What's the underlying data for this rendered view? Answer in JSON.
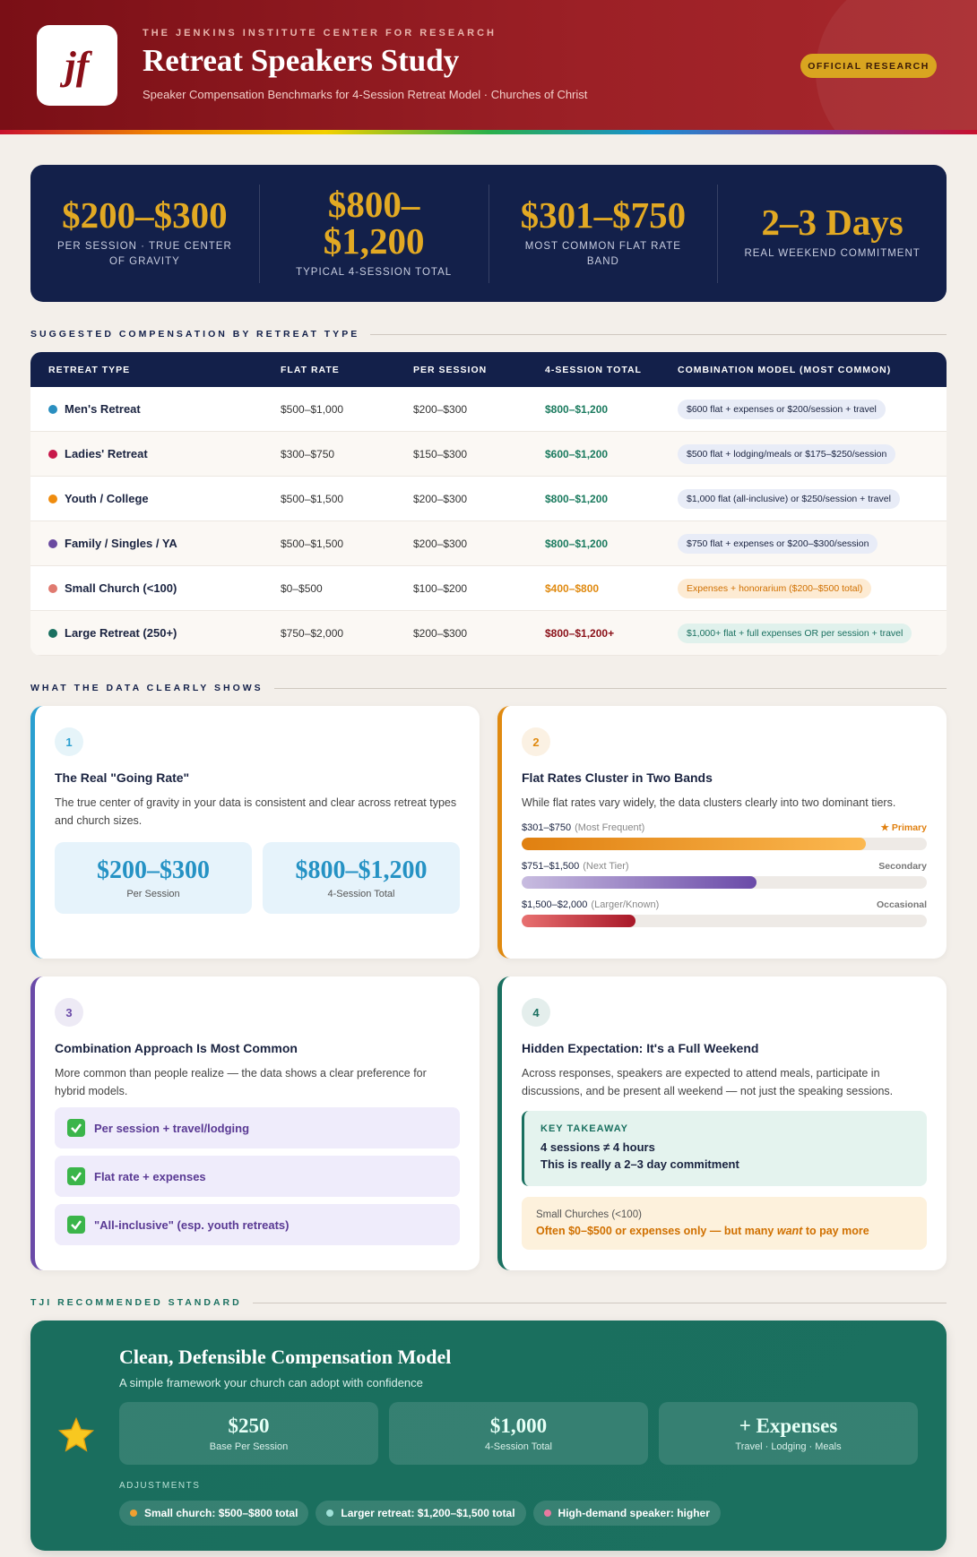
{
  "header": {
    "logo": "jf",
    "kicker": "THE JENKINS INSTITUTE CENTER FOR RESEARCH",
    "title": "Retreat Speakers Study",
    "subtitle": "Speaker Compensation Benchmarks for 4-Session Retreat Model · Churches of Christ",
    "badge": "OFFICIAL RESEARCH"
  },
  "stats": [
    {
      "value": "$200–$300",
      "label": "PER SESSION · TRUE CENTER OF GRAVITY"
    },
    {
      "value": "$800–$1,200",
      "label": "TYPICAL 4-SESSION TOTAL"
    },
    {
      "value": "$301–$750",
      "label": "MOST COMMON FLAT RATE BAND"
    },
    {
      "value": "2–3 Days",
      "label": "REAL WEEKEND COMMITMENT"
    }
  ],
  "table": {
    "heading": "SUGGESTED COMPENSATION BY RETREAT TYPE",
    "columns": [
      "RETREAT TYPE",
      "FLAT RATE",
      "PER SESSION",
      "4-SESSION TOTAL",
      "COMBINATION MODEL (MOST COMMON)"
    ],
    "rows": [
      [
        "Men's Retreat",
        "$500–$1,000",
        "$200–$300",
        "$800–$1,200",
        "$600 flat + expenses or $200/session + travel"
      ],
      [
        "Ladies' Retreat",
        "$300–$750",
        "$150–$300",
        "$600–$1,200",
        "$500 flat + lodging/meals or $175–$250/session"
      ],
      [
        "Youth / College",
        "$500–$1,500",
        "$200–$300",
        "$800–$1,200",
        "$1,000 flat (all-inclusive) or $250/session + travel"
      ],
      [
        "Family / Singles / YA",
        "$500–$1,500",
        "$200–$300",
        "$800–$1,200",
        "$750 flat + expenses or $200–$300/session"
      ],
      [
        "Small Church (<100)",
        "$0–$500",
        "$100–$200",
        "$400–$800",
        "Expenses + honorarium ($200–$500 total)"
      ],
      [
        "Large Retreat (250+)",
        "$750–$2,000",
        "$200–$300",
        "$800–$1,200+",
        "$1,000+ flat + full expenses OR per session + travel"
      ]
    ],
    "dot_colors": [
      "#2a8fc0",
      "#c8184a",
      "#ef8c0e",
      "#6a4aa0",
      "#e07a70",
      "#1a7060"
    ],
    "tones": [
      "normal",
      "normal",
      "normal",
      "normal",
      "warn",
      "high"
    ]
  },
  "findings": {
    "heading": "WHAT THE DATA CLEARLY SHOWS",
    "cards": [
      {
        "number": "1",
        "color": "#2a9fd0",
        "title": "The Real \"Going Rate\"",
        "text": "The true center of gravity in your data is consistent and clear across retreat types and church sizes.",
        "boxes": [
          {
            "value": "$200–$300",
            "label": "Per Session"
          },
          {
            "value": "$800–$1,200",
            "label": "4-Session Total"
          }
        ]
      },
      {
        "number": "2",
        "color": "#e08a10",
        "title": "Flat Rates Cluster in Two Bands",
        "text": "While flat rates vary widely, the data clusters clearly into two dominant tiers.",
        "bars": [
          {
            "range": "$301–$750",
            "note": "(Most Frequent)",
            "tier": "★ Primary",
            "value": 85,
            "colors": [
              "#e08010",
              "#fbb850"
            ]
          },
          {
            "range": "$751–$1,500",
            "note": "(Next Tier)",
            "tier": "Secondary",
            "value": 58,
            "colors": [
              "#c8bce0",
              "#6a4aa8"
            ]
          },
          {
            "range": "$1,500–$2,000",
            "note": "(Larger/Known)",
            "tier": "Occasional",
            "value": 28,
            "colors": [
              "#e87070",
              "#a81828"
            ]
          }
        ]
      },
      {
        "number": "3",
        "color": "#6a4aa8",
        "title": "Combination Approach Is Most Common",
        "text": "More common than people realize — the data shows a clear preference for hybrid models.",
        "items": [
          "Per session + travel/lodging",
          "Flat rate + expenses",
          "\"All-inclusive\" (esp. youth retreats)"
        ]
      },
      {
        "number": "4",
        "color": "#1a7060",
        "title": "Hidden Expectation: It's a Full Weekend",
        "text": "Across responses, speakers are expected to attend meals, participate in discussions, and be present all weekend — not just the speaking sessions.",
        "takeaway": {
          "label": "KEY TAKEAWAY",
          "lines": [
            "4 sessions ≠ 4 hours",
            "This is really a 2–3 day commitment"
          ]
        },
        "note": {
          "label": "Small Churches (<100)",
          "before": "Often $0–$500 or expenses only — but many ",
          "emphasis": "want",
          "after": " to pay more"
        }
      }
    ]
  },
  "recommended": {
    "heading": "TJI RECOMMENDED STANDARD",
    "title": "Clean, Defensible Compensation Model",
    "subtitle": "A simple framework your church can adopt with confidence",
    "boxes": [
      {
        "value": "$250",
        "label": "Base Per Session"
      },
      {
        "value": "$1,000",
        "label": "4-Session Total"
      },
      {
        "value": "+ Expenses",
        "label": "Travel · Lodging · Meals"
      }
    ],
    "adjust_label": "ADJUSTMENTS",
    "adjustments": [
      {
        "text": "Small church: $500–$800 total",
        "color": "#f0a030"
      },
      {
        "text": "Larger retreat: $1,200–$1,500 total",
        "color": "#a0e0d8"
      },
      {
        "text": "High-demand speaker: higher",
        "color": "#e87aa0"
      }
    ]
  }
}
